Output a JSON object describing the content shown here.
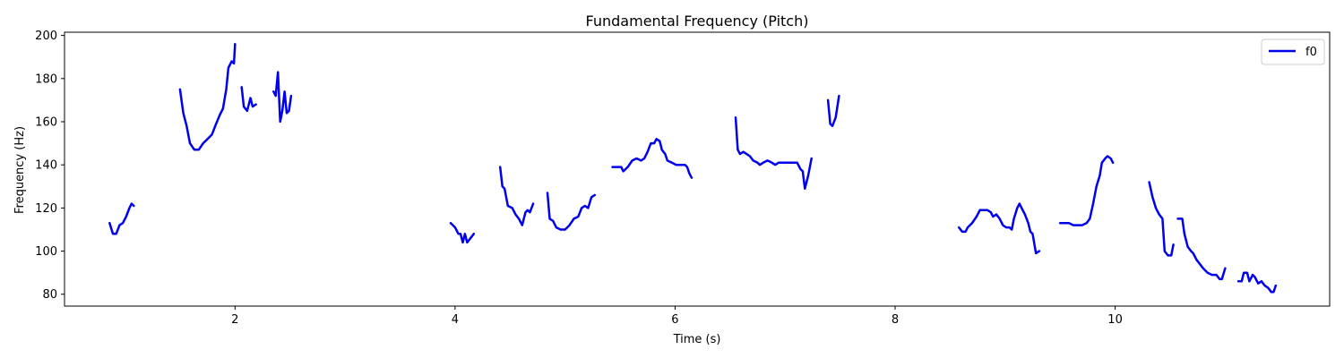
{
  "chart_data": {
    "type": "line",
    "title": "Fundamental Frequency (Pitch)",
    "xlabel": "Time (s)",
    "ylabel": "Frequency (Hz)",
    "xlim": [
      0.45,
      11.95
    ],
    "ylim": [
      74.5,
      201.5
    ],
    "x_ticks": [
      2,
      4,
      6,
      8,
      10
    ],
    "x_tick_labels": [
      "2",
      "4",
      "6",
      "8",
      "10"
    ],
    "y_ticks": [
      80,
      100,
      120,
      140,
      160,
      180,
      200
    ],
    "y_tick_labels": [
      "80",
      "100",
      "120",
      "140",
      "160",
      "180",
      "200"
    ],
    "grid": false,
    "legend_position": "top-right",
    "series": [
      {
        "name": "f0",
        "color": "#0000ee",
        "segments": [
          [
            [
              0.86,
              113
            ],
            [
              0.89,
              108
            ],
            [
              0.92,
              108
            ],
            [
              0.95,
              112
            ],
            [
              0.98,
              113
            ],
            [
              1.01,
              116
            ],
            [
              1.04,
              120
            ],
            [
              1.06,
              122
            ],
            [
              1.08,
              121
            ]
          ],
          [
            [
              1.5,
              175
            ],
            [
              1.53,
              164
            ],
            [
              1.56,
              158
            ],
            [
              1.59,
              150
            ],
            [
              1.63,
              147
            ],
            [
              1.67,
              147
            ],
            [
              1.71,
              150
            ],
            [
              1.75,
              152
            ],
            [
              1.79,
              154
            ],
            [
              1.82,
              158
            ],
            [
              1.86,
              163
            ],
            [
              1.89,
              166
            ],
            [
              1.92,
              175
            ],
            [
              1.94,
              185
            ],
            [
              1.97,
              188
            ],
            [
              1.99,
              187
            ],
            [
              2.0,
              196
            ]
          ],
          [
            [
              2.06,
              176
            ],
            [
              2.08,
              167
            ],
            [
              2.11,
              165
            ],
            [
              2.14,
              171
            ],
            [
              2.16,
              167
            ],
            [
              2.19,
              168
            ]
          ],
          [
            [
              2.35,
              174
            ],
            [
              2.37,
              172
            ],
            [
              2.39,
              183
            ],
            [
              2.41,
              160
            ],
            [
              2.43,
              165
            ],
            [
              2.45,
              174
            ],
            [
              2.47,
              164
            ],
            [
              2.49,
              165
            ],
            [
              2.51,
              172
            ]
          ],
          [
            [
              3.96,
              113
            ],
            [
              4.0,
              111
            ],
            [
              4.03,
              108
            ],
            [
              4.05,
              108
            ],
            [
              4.07,
              104
            ],
            [
              4.09,
              108
            ],
            [
              4.11,
              104
            ],
            [
              4.14,
              106
            ],
            [
              4.17,
              108
            ]
          ],
          [
            [
              4.41,
              139
            ],
            [
              4.43,
              130
            ],
            [
              4.45,
              129
            ],
            [
              4.48,
              121
            ],
            [
              4.52,
              120
            ],
            [
              4.55,
              117
            ],
            [
              4.58,
              115
            ],
            [
              4.61,
              112
            ],
            [
              4.64,
              118
            ],
            [
              4.66,
              119
            ],
            [
              4.68,
              118
            ],
            [
              4.71,
              122
            ]
          ],
          [
            [
              4.84,
              127
            ],
            [
              4.86,
              115
            ],
            [
              4.89,
              114
            ],
            [
              4.92,
              111
            ],
            [
              4.96,
              110
            ],
            [
              5.0,
              110
            ],
            [
              5.04,
              112
            ],
            [
              5.08,
              115
            ],
            [
              5.12,
              116
            ],
            [
              5.15,
              120
            ],
            [
              5.18,
              121
            ],
            [
              5.21,
              120
            ],
            [
              5.24,
              125
            ],
            [
              5.27,
              126
            ]
          ],
          [
            [
              5.43,
              139
            ],
            [
              5.47,
              139
            ],
            [
              5.51,
              139
            ],
            [
              5.53,
              137
            ],
            [
              5.57,
              139
            ],
            [
              5.61,
              142
            ],
            [
              5.65,
              143
            ],
            [
              5.69,
              142
            ],
            [
              5.72,
              143
            ],
            [
              5.75,
              146
            ],
            [
              5.78,
              150
            ],
            [
              5.81,
              150
            ],
            [
              5.83,
              152
            ],
            [
              5.86,
              151
            ],
            [
              5.88,
              147
            ],
            [
              5.91,
              145
            ],
            [
              5.93,
              142
            ],
            [
              5.97,
              141
            ],
            [
              6.01,
              140
            ],
            [
              6.05,
              140
            ],
            [
              6.09,
              140
            ],
            [
              6.11,
              139
            ],
            [
              6.13,
              136
            ],
            [
              6.15,
              134
            ]
          ],
          [
            [
              6.55,
              162
            ],
            [
              6.57,
              147
            ],
            [
              6.59,
              145
            ],
            [
              6.62,
              146
            ],
            [
              6.65,
              145
            ],
            [
              6.68,
              144
            ],
            [
              6.71,
              142
            ],
            [
              6.75,
              141
            ],
            [
              6.77,
              140
            ],
            [
              6.8,
              141
            ],
            [
              6.84,
              142
            ],
            [
              6.88,
              141
            ],
            [
              6.91,
              140
            ],
            [
              6.94,
              141
            ],
            [
              6.97,
              141
            ],
            [
              7.0,
              141
            ],
            [
              7.04,
              141
            ],
            [
              7.08,
              141
            ],
            [
              7.11,
              141
            ],
            [
              7.14,
              138
            ],
            [
              7.16,
              137
            ],
            [
              7.18,
              129
            ],
            [
              7.21,
              135
            ],
            [
              7.24,
              143
            ]
          ],
          [
            [
              7.39,
              170
            ],
            [
              7.41,
              159
            ],
            [
              7.43,
              158
            ],
            [
              7.46,
              162
            ],
            [
              7.49,
              172
            ]
          ],
          [
            [
              8.58,
              111
            ],
            [
              8.61,
              109
            ],
            [
              8.64,
              109
            ],
            [
              8.66,
              111
            ],
            [
              8.7,
              113
            ],
            [
              8.74,
              116
            ],
            [
              8.77,
              119
            ],
            [
              8.81,
              119
            ],
            [
              8.84,
              119
            ],
            [
              8.87,
              118
            ],
            [
              8.89,
              116
            ],
            [
              8.92,
              117
            ],
            [
              8.95,
              115
            ],
            [
              8.98,
              112
            ],
            [
              9.01,
              111
            ],
            [
              9.04,
              111
            ],
            [
              9.06,
              110
            ],
            [
              9.08,
              115
            ],
            [
              9.11,
              120
            ],
            [
              9.13,
              122
            ],
            [
              9.15,
              120
            ],
            [
              9.18,
              117
            ],
            [
              9.21,
              113
            ],
            [
              9.23,
              109
            ],
            [
              9.25,
              108
            ],
            [
              9.28,
              99
            ],
            [
              9.31,
              100
            ]
          ],
          [
            [
              9.5,
              113
            ],
            [
              9.54,
              113
            ],
            [
              9.58,
              113
            ],
            [
              9.62,
              112
            ],
            [
              9.66,
              112
            ],
            [
              9.7,
              112
            ],
            [
              9.74,
              113
            ],
            [
              9.77,
              115
            ],
            [
              9.8,
              122
            ],
            [
              9.83,
              130
            ],
            [
              9.86,
              135
            ],
            [
              9.88,
              141
            ],
            [
              9.91,
              143
            ],
            [
              9.93,
              144
            ],
            [
              9.96,
              143
            ],
            [
              9.98,
              141
            ]
          ],
          [
            [
              10.31,
              132
            ],
            [
              10.34,
              125
            ],
            [
              10.37,
              120
            ],
            [
              10.4,
              117
            ],
            [
              10.43,
              115
            ],
            [
              10.45,
              100
            ],
            [
              10.48,
              98
            ],
            [
              10.51,
              98
            ],
            [
              10.53,
              103
            ]
          ],
          [
            [
              10.57,
              115
            ],
            [
              10.61,
              115
            ],
            [
              10.63,
              108
            ],
            [
              10.66,
              102
            ],
            [
              10.69,
              100
            ],
            [
              10.71,
              99
            ],
            [
              10.74,
              96
            ],
            [
              10.77,
              94
            ],
            [
              10.8,
              92
            ],
            [
              10.84,
              90
            ],
            [
              10.88,
              89
            ],
            [
              10.92,
              89
            ],
            [
              10.95,
              87
            ],
            [
              10.97,
              87
            ],
            [
              11.0,
              92
            ]
          ],
          [
            [
              11.12,
              86
            ],
            [
              11.15,
              86
            ],
            [
              11.17,
              90
            ],
            [
              11.2,
              90
            ],
            [
              11.22,
              86
            ],
            [
              11.25,
              89
            ],
            [
              11.27,
              88
            ],
            [
              11.3,
              85
            ],
            [
              11.33,
              86
            ],
            [
              11.36,
              84
            ],
            [
              11.39,
              83
            ],
            [
              11.42,
              81
            ],
            [
              11.44,
              81
            ],
            [
              11.46,
              84
            ]
          ]
        ]
      }
    ]
  }
}
